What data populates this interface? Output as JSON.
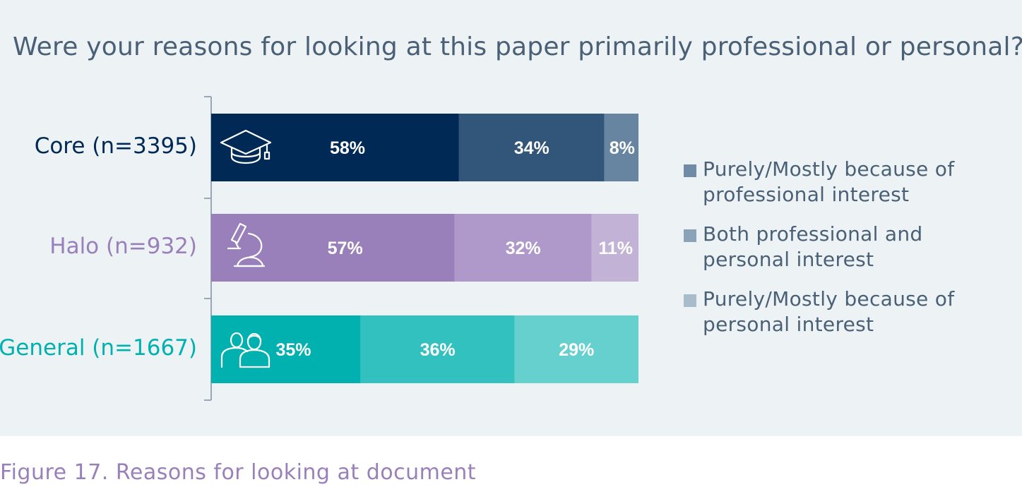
{
  "chart_data": {
    "type": "bar",
    "orientation": "horizontal",
    "stacked": true,
    "title": "Were your reasons for looking at this paper primarily professional or personal?",
    "caption": "Figure 17. Reasons for looking at document",
    "categories": [
      "Core (n=3395)",
      "Halo (n=932)",
      "General (n=1667)"
    ],
    "category_colors": [
      "#002a55",
      "#9a80bb",
      "#00b1b0"
    ],
    "category_icons": [
      "graduation-cap-icon",
      "microscope-icon",
      "people-icon"
    ],
    "series": [
      {
        "name": "Purely/Mostly because of professional interest",
        "values": [
          58,
          57,
          35
        ]
      },
      {
        "name": "Both professional and personal interest",
        "values": [
          34,
          32,
          36
        ]
      },
      {
        "name": "Purely/Mostly because of personal interest",
        "values": [
          8,
          11,
          29
        ]
      }
    ],
    "segment_colors": [
      [
        "#002a55",
        "#32567a",
        "#6784a0"
      ],
      [
        "#9a80bb",
        "#ae99ca",
        "#c2b3d6"
      ],
      [
        "#00b1b0",
        "#33c1c0",
        "#66d0cf"
      ]
    ],
    "legend_colors": [
      "#6f8ba5",
      "#8ba3b8",
      "#a9bccb"
    ],
    "value_suffix": "%",
    "xlim": [
      0,
      100
    ],
    "legend_position": "right",
    "grid": false
  }
}
